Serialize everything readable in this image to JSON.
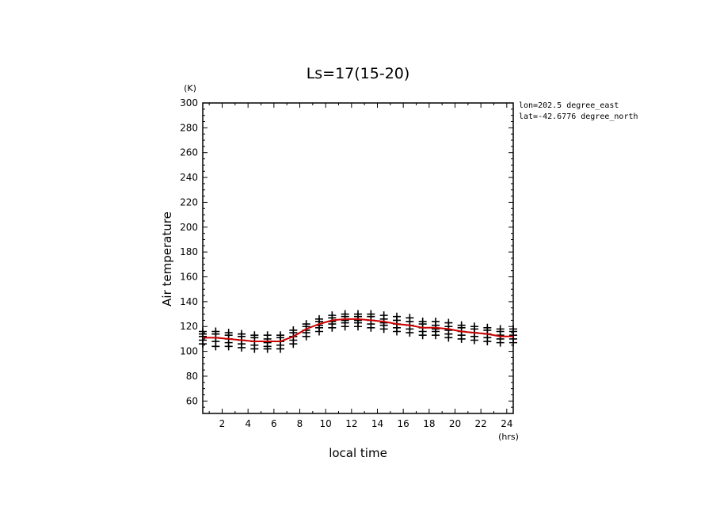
{
  "chart_data": {
    "type": "scatter",
    "title": "Ls=17(15-20)",
    "xlabel": "local time",
    "xunit": "(hrs)",
    "ylabel": "Air temperature",
    "yunit": "(K)",
    "xlim": [
      0.5,
      24.5
    ],
    "ylim": [
      50,
      300
    ],
    "xticks": [
      2,
      4,
      6,
      8,
      10,
      12,
      14,
      16,
      18,
      20,
      22,
      24
    ],
    "yticks": [
      60,
      80,
      100,
      120,
      140,
      160,
      180,
      200,
      220,
      240,
      260,
      280,
      300
    ],
    "grid": false,
    "annotations": [
      "lon=202.5 degree_east",
      "lat=-42.6776 degree_north"
    ],
    "hours": [
      0.5,
      1.5,
      2.5,
      3.5,
      4.5,
      5.5,
      6.5,
      7.5,
      8.5,
      9.5,
      10.5,
      11.5,
      12.5,
      13.5,
      14.5,
      15.5,
      16.5,
      17.5,
      18.5,
      19.5,
      20.5,
      21.5,
      22.5,
      23.5,
      24.5
    ],
    "point_values": [
      [
        116,
        114,
        112,
        109,
        106
      ],
      [
        116,
        114,
        111,
        108,
        104
      ],
      [
        115,
        113,
        110,
        107,
        104
      ],
      [
        114,
        112,
        109,
        106,
        103
      ],
      [
        113,
        111,
        108,
        105,
        102
      ],
      [
        113,
        110,
        107,
        104,
        102
      ],
      [
        113,
        111,
        108,
        105,
        102
      ],
      [
        117,
        115,
        112,
        109,
        106
      ],
      [
        122,
        120,
        117,
        115,
        112
      ],
      [
        126,
        124,
        121,
        119,
        116
      ],
      [
        129,
        127,
        124,
        122,
        119
      ],
      [
        130,
        128,
        125,
        123,
        120
      ],
      [
        130,
        128,
        125,
        123,
        120
      ],
      [
        130,
        128,
        125,
        122,
        119
      ],
      [
        129,
        126,
        123,
        121,
        118
      ],
      [
        128,
        125,
        122,
        119,
        116
      ],
      [
        127,
        124,
        121,
        118,
        115
      ],
      [
        124,
        122,
        119,
        116,
        113
      ],
      [
        124,
        121,
        118,
        116,
        113
      ],
      [
        123,
        120,
        117,
        114,
        111
      ],
      [
        121,
        119,
        116,
        113,
        110
      ],
      [
        120,
        118,
        115,
        112,
        109
      ],
      [
        119,
        117,
        114,
        111,
        108
      ],
      [
        118,
        116,
        113,
        110,
        107
      ],
      [
        118,
        116,
        113,
        110,
        107
      ]
    ],
    "series": [
      {
        "style": "line",
        "color": "#cc0000",
        "x": [
          0.5,
          1.5,
          2.5,
          3.5,
          4.5,
          5.5,
          6.5,
          7.5,
          8.5,
          9.5,
          10.5,
          11.5,
          12.5,
          13.5,
          14.5,
          15.5,
          16.5,
          17.5,
          18.5,
          19.5,
          20.5,
          21.5,
          22.5,
          23.5,
          24.5
        ],
        "values": [
          111,
          111,
          110,
          109,
          108,
          108,
          108,
          112,
          118,
          122,
          125,
          126,
          126,
          125,
          124,
          122,
          121,
          119,
          119,
          118,
          116,
          115,
          114,
          112,
          112
        ]
      }
    ]
  }
}
